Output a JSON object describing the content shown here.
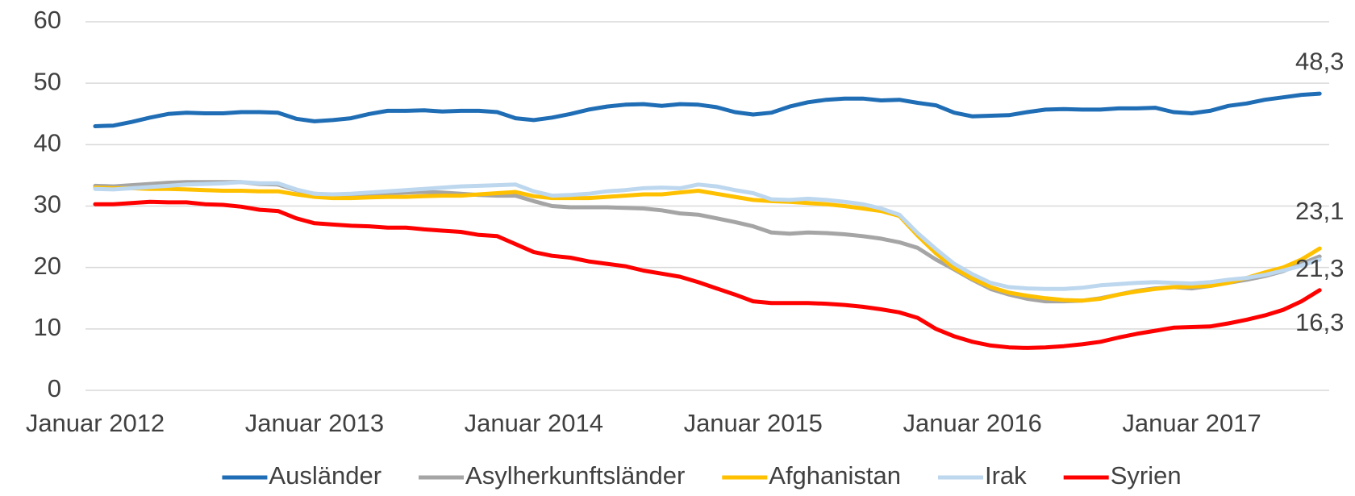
{
  "chart_data": {
    "type": "line",
    "categories": [
      "Januar 2012",
      null,
      null,
      null,
      null,
      null,
      null,
      null,
      null,
      null,
      null,
      null,
      "Januar 2013",
      null,
      null,
      null,
      null,
      null,
      null,
      null,
      null,
      null,
      null,
      null,
      "Januar 2014",
      null,
      null,
      null,
      null,
      null,
      null,
      null,
      null,
      null,
      null,
      null,
      "Januar 2015",
      null,
      null,
      null,
      null,
      null,
      null,
      null,
      null,
      null,
      null,
      null,
      "Januar 2016",
      null,
      null,
      null,
      null,
      null,
      null,
      null,
      null,
      null,
      null,
      null,
      "Januar 2017",
      null,
      null,
      null,
      null,
      null,
      null,
      null
    ],
    "ylim": [
      0,
      60
    ],
    "yticks": [
      0,
      10,
      20,
      30,
      40,
      50,
      60
    ],
    "grid": true,
    "legend": "bottom",
    "series": [
      {
        "name": "Ausländer",
        "color": "#1f6db5",
        "values": [
          43.0,
          43.1,
          43.7,
          44.4,
          45.0,
          45.2,
          45.1,
          45.1,
          45.3,
          45.3,
          45.2,
          44.2,
          43.8,
          44.0,
          44.3,
          45.0,
          45.5,
          45.5,
          45.6,
          45.4,
          45.5,
          45.5,
          45.3,
          44.3,
          44.0,
          44.4,
          45.0,
          45.7,
          46.2,
          46.5,
          46.6,
          46.3,
          46.6,
          46.5,
          46.1,
          45.3,
          44.9,
          45.2,
          46.2,
          46.9,
          47.3,
          47.5,
          47.5,
          47.2,
          47.3,
          46.8,
          46.4,
          45.2,
          44.6,
          44.7,
          44.8,
          45.3,
          45.7,
          45.8,
          45.7,
          45.7,
          45.9,
          45.9,
          46.0,
          45.3,
          45.1,
          45.5,
          46.3,
          46.7,
          47.3,
          47.7,
          48.1,
          48.3
        ],
        "value_labels": [
          null,
          null,
          null,
          null,
          null,
          null,
          null,
          null,
          null,
          null,
          null,
          null,
          null,
          null,
          null,
          null,
          null,
          null,
          null,
          null,
          null,
          null,
          null,
          null,
          null,
          null,
          null,
          null,
          null,
          null,
          null,
          null,
          null,
          null,
          null,
          null,
          null,
          null,
          null,
          null,
          null,
          null,
          null,
          null,
          null,
          null,
          null,
          null,
          null,
          null,
          null,
          null,
          null,
          null,
          null,
          null,
          null,
          null,
          null,
          null,
          null,
          null,
          null,
          null,
          null,
          null,
          null,
          "48,3"
        ]
      },
      {
        "name": "Asylherkunftsländer",
        "color": "#a5a5a5",
        "values": [
          33.3,
          33.2,
          33.4,
          33.6,
          33.8,
          33.9,
          33.9,
          33.9,
          33.9,
          33.6,
          33.5,
          32.6,
          32.0,
          31.8,
          31.9,
          32.0,
          32.1,
          32.2,
          32.3,
          32.2,
          32.0,
          31.8,
          31.7,
          31.7,
          30.8,
          30.0,
          29.8,
          29.8,
          29.8,
          29.7,
          29.6,
          29.3,
          28.8,
          28.6,
          28.0,
          27.4,
          26.7,
          25.7,
          25.5,
          25.7,
          25.6,
          25.4,
          25.1,
          24.7,
          24.1,
          23.2,
          21.3,
          19.7,
          18.0,
          16.5,
          15.6,
          14.9,
          14.5,
          14.5,
          14.6,
          15.0,
          15.6,
          16.2,
          16.6,
          16.8,
          16.6,
          17.0,
          17.5,
          18.0,
          18.6,
          19.4,
          20.6,
          21.8
        ]
      },
      {
        "name": "Afghanistan",
        "color": "#ffc000",
        "values": [
          33.0,
          32.9,
          32.9,
          32.8,
          32.8,
          32.7,
          32.6,
          32.5,
          32.5,
          32.4,
          32.4,
          31.9,
          31.5,
          31.3,
          31.3,
          31.4,
          31.5,
          31.5,
          31.6,
          31.7,
          31.7,
          31.9,
          32.1,
          32.3,
          31.6,
          31.3,
          31.3,
          31.3,
          31.5,
          31.7,
          31.9,
          31.9,
          32.2,
          32.5,
          32.0,
          31.5,
          31.0,
          30.8,
          30.7,
          30.5,
          30.3,
          30.0,
          29.6,
          29.2,
          28.4,
          25.2,
          22.3,
          19.9,
          18.2,
          16.8,
          15.9,
          15.4,
          15.0,
          14.7,
          14.6,
          14.9,
          15.6,
          16.1,
          16.5,
          16.8,
          16.9,
          17.0,
          17.5,
          18.3,
          19.2,
          20.0,
          21.3,
          23.1
        ],
        "value_labels": [
          null,
          null,
          null,
          null,
          null,
          null,
          null,
          null,
          null,
          null,
          null,
          null,
          null,
          null,
          null,
          null,
          null,
          null,
          null,
          null,
          null,
          null,
          null,
          null,
          null,
          null,
          null,
          null,
          null,
          null,
          null,
          null,
          null,
          null,
          null,
          null,
          null,
          null,
          null,
          null,
          null,
          null,
          null,
          null,
          null,
          null,
          null,
          null,
          null,
          null,
          null,
          null,
          null,
          null,
          null,
          null,
          null,
          null,
          null,
          null,
          null,
          null,
          null,
          null,
          null,
          null,
          null,
          "23,1"
        ]
      },
      {
        "name": "Irak",
        "color": "#bdd7ee",
        "values": [
          32.8,
          32.7,
          32.9,
          33.1,
          33.3,
          33.5,
          33.6,
          33.7,
          33.9,
          33.7,
          33.7,
          32.7,
          32.0,
          31.9,
          32.0,
          32.2,
          32.4,
          32.6,
          32.8,
          33.0,
          33.2,
          33.3,
          33.4,
          33.5,
          32.4,
          31.7,
          31.8,
          32.0,
          32.4,
          32.6,
          32.9,
          33.0,
          32.9,
          33.5,
          33.2,
          32.6,
          32.1,
          31.1,
          31.0,
          31.2,
          31.0,
          30.7,
          30.3,
          29.6,
          28.6,
          25.6,
          23.0,
          20.6,
          18.9,
          17.5,
          16.8,
          16.6,
          16.5,
          16.5,
          16.7,
          17.1,
          17.3,
          17.5,
          17.6,
          17.5,
          17.4,
          17.6,
          18.0,
          18.3,
          18.8,
          19.5,
          20.3,
          21.3
        ],
        "value_labels": [
          null,
          null,
          null,
          null,
          null,
          null,
          null,
          null,
          null,
          null,
          null,
          null,
          null,
          null,
          null,
          null,
          null,
          null,
          null,
          null,
          null,
          null,
          null,
          null,
          null,
          null,
          null,
          null,
          null,
          null,
          null,
          null,
          null,
          null,
          null,
          null,
          null,
          null,
          null,
          null,
          null,
          null,
          null,
          null,
          null,
          null,
          null,
          null,
          null,
          null,
          null,
          null,
          null,
          null,
          null,
          null,
          null,
          null,
          null,
          null,
          null,
          null,
          null,
          null,
          null,
          null,
          null,
          "21,3"
        ]
      },
      {
        "name": "Syrien",
        "color": "#ff0000",
        "values": [
          30.3,
          30.3,
          30.5,
          30.7,
          30.6,
          30.6,
          30.3,
          30.2,
          29.9,
          29.4,
          29.2,
          28.0,
          27.2,
          27.0,
          26.8,
          26.7,
          26.5,
          26.5,
          26.2,
          26.0,
          25.8,
          25.3,
          25.1,
          23.8,
          22.5,
          21.9,
          21.6,
          21.0,
          20.6,
          20.2,
          19.5,
          19.0,
          18.5,
          17.6,
          16.6,
          15.6,
          14.5,
          14.2,
          14.2,
          14.2,
          14.1,
          13.9,
          13.6,
          13.2,
          12.7,
          11.8,
          10.0,
          8.8,
          7.9,
          7.3,
          7.0,
          6.9,
          7.0,
          7.2,
          7.5,
          7.9,
          8.6,
          9.2,
          9.7,
          10.2,
          10.3,
          10.4,
          10.9,
          11.5,
          12.2,
          13.1,
          14.5,
          16.3
        ],
        "value_labels": [
          null,
          null,
          null,
          null,
          null,
          null,
          null,
          null,
          null,
          null,
          null,
          null,
          null,
          null,
          null,
          null,
          null,
          null,
          null,
          null,
          null,
          null,
          null,
          null,
          null,
          null,
          null,
          null,
          null,
          null,
          null,
          null,
          null,
          null,
          null,
          null,
          null,
          null,
          null,
          null,
          null,
          null,
          null,
          null,
          null,
          null,
          null,
          null,
          null,
          null,
          null,
          null,
          null,
          null,
          null,
          null,
          null,
          null,
          null,
          null,
          null,
          null,
          null,
          null,
          null,
          null,
          null,
          "16,3"
        ]
      }
    ]
  }
}
